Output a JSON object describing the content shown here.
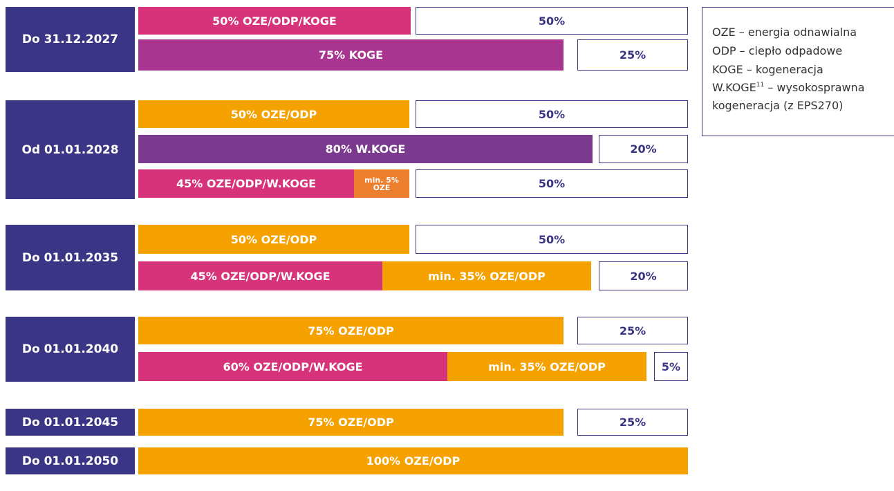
{
  "groups": [
    {
      "label": "Do 31.12.2027",
      "rows": [
        [
          {
            "text": "50% OZE/ODP/KOGE"
          },
          {
            "text": "50%"
          }
        ],
        [
          {
            "text": "75% KOGE"
          },
          {
            "text": "25%"
          }
        ]
      ]
    },
    {
      "label": "Od 01.01.2028",
      "rows": [
        [
          {
            "text": "50% OZE/ODP"
          },
          {
            "text": "50%"
          }
        ],
        [
          {
            "text": "80% W.KOGE"
          },
          {
            "text": "20%"
          }
        ],
        [
          {
            "text": "45% OZE/ODP/W.KOGE"
          },
          {
            "text": "min. 5% OZE"
          },
          {
            "text": "50%"
          }
        ]
      ]
    },
    {
      "label": "Do 01.01.2035",
      "rows": [
        [
          {
            "text": "50% OZE/ODP"
          },
          {
            "text": "50%"
          }
        ],
        [
          {
            "text": "45% OZE/ODP/W.KOGE"
          },
          {
            "text": "min. 35% OZE/ODP"
          },
          {
            "text": "20%"
          }
        ]
      ]
    },
    {
      "label": "Do 01.01.2040",
      "rows": [
        [
          {
            "text": "75% OZE/ODP"
          },
          {
            "text": "25%"
          }
        ],
        [
          {
            "text": "60% OZE/ODP/W.KOGE"
          },
          {
            "text": "min. 35% OZE/ODP"
          },
          {
            "text": "5%"
          }
        ]
      ]
    },
    {
      "label": "Do 01.01.2045",
      "rows": [
        [
          {
            "text": "75% OZE/ODP"
          },
          {
            "text": "25%"
          }
        ]
      ]
    },
    {
      "label": "Do 01.01.2050",
      "rows": [
        [
          {
            "text": "100% OZE/ODP"
          }
        ]
      ]
    }
  ],
  "legend": [
    {
      "term": "OZE",
      "desc": "– energia odnawialna"
    },
    {
      "term": "ODP",
      "desc": "– ciepło odpadowe"
    },
    {
      "term": "KOGE",
      "desc": "– kogeneracja"
    },
    {
      "term": "W.KOGE",
      "sup": "11",
      "desc": "– wysokosprawna kogeneracja (z EPS270)"
    }
  ]
}
